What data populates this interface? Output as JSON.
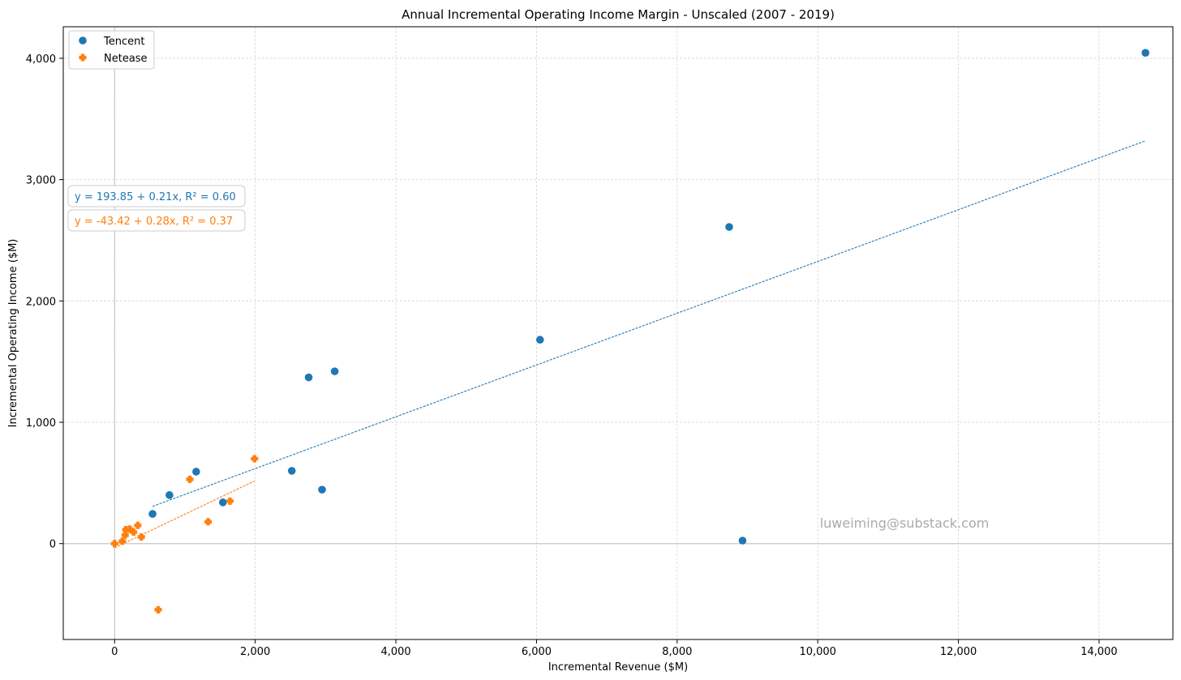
{
  "chart_data": {
    "type": "scatter",
    "title": "Annual Incremental Operating Income Margin - Unscaled (2007 - 2019)",
    "xlabel": "Incremental Revenue ($M)",
    "ylabel": "Incremental Operating Income ($M)",
    "xlim": [
      -730,
      15050
    ],
    "ylim": [
      -790,
      4260
    ],
    "xticks": [
      0,
      2000,
      4000,
      6000,
      8000,
      10000,
      12000,
      14000
    ],
    "yticks": [
      0,
      1000,
      2000,
      3000,
      4000
    ],
    "xtick_labels": [
      "0",
      "2,000",
      "4,000",
      "6,000",
      "8,000",
      "10,000",
      "12,000",
      "14,000"
    ],
    "ytick_labels": [
      "0",
      "1,000",
      "2,000",
      "3,000",
      "4,000"
    ],
    "grid": true,
    "legend_position": "top-left",
    "series": [
      {
        "name": "Tencent",
        "color": "#1f77b4",
        "marker": "circle",
        "points": [
          {
            "x": 540,
            "y": 245
          },
          {
            "x": 780,
            "y": 400
          },
          {
            "x": 1160,
            "y": 593
          },
          {
            "x": 1540,
            "y": 340
          },
          {
            "x": 2520,
            "y": 600
          },
          {
            "x": 2760,
            "y": 1370
          },
          {
            "x": 2950,
            "y": 445
          },
          {
            "x": 3130,
            "y": 1420
          },
          {
            "x": 6050,
            "y": 1680
          },
          {
            "x": 8740,
            "y": 2610
          },
          {
            "x": 8930,
            "y": 25
          },
          {
            "x": 14660,
            "y": 4045
          }
        ],
        "trendline": {
          "x": [
            540,
            14660
          ],
          "label": "y = 193.85 + 0.21x, R² = 0.60"
        }
      },
      {
        "name": "Netease",
        "color": "#ff7f0e",
        "marker": "plus",
        "points": [
          {
            "x": 0,
            "y": 0
          },
          {
            "x": 110,
            "y": 20
          },
          {
            "x": 150,
            "y": 70
          },
          {
            "x": 160,
            "y": 115
          },
          {
            "x": 215,
            "y": 120
          },
          {
            "x": 270,
            "y": 95
          },
          {
            "x": 330,
            "y": 150
          },
          {
            "x": 380,
            "y": 55
          },
          {
            "x": 620,
            "y": -545
          },
          {
            "x": 1070,
            "y": 530
          },
          {
            "x": 1330,
            "y": 180
          },
          {
            "x": 1640,
            "y": 350
          },
          {
            "x": 1990,
            "y": 700
          }
        ],
        "trendline": {
          "x": [
            0,
            1990
          ],
          "label": "y = -43.42 + 0.28x, R² = 0.37"
        }
      }
    ],
    "watermark": "luweiming@substack.com"
  }
}
